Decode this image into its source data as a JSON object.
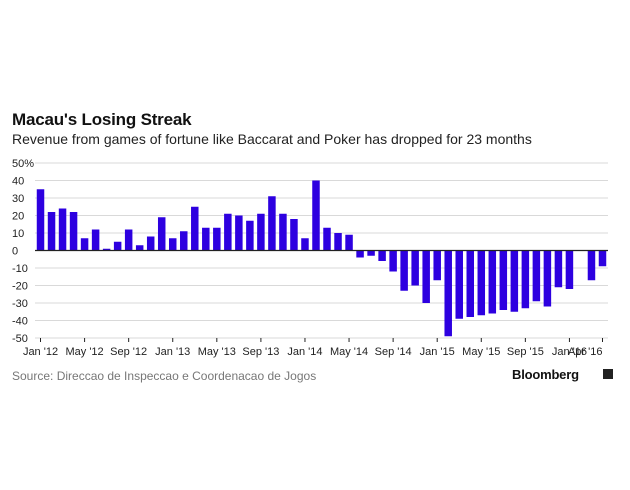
{
  "header": {
    "title": "Macau's Losing Streak",
    "subtitle": "Revenue from games of fortune like Baccarat and Poker has dropped for 23 months"
  },
  "footer": {
    "source": "Source: Direccao de Inspeccao e Coordenacao de Jogos",
    "brand": "Bloomberg"
  },
  "colors": {
    "bar": "#2d00e0",
    "grid": "#d9d9d9",
    "zero_line": "#222222",
    "text": "#222222"
  },
  "chart_data": {
    "type": "bar",
    "title": "Macau's Losing Streak",
    "subtitle": "Revenue from games of fortune like Baccarat and Poker has dropped for 23 months",
    "xlabel": "",
    "ylabel": "",
    "unit": "%",
    "grid": true,
    "ylim": [
      -50,
      50
    ],
    "yticks": [
      50,
      40,
      30,
      20,
      10,
      0,
      -10,
      -20,
      -30,
      -40,
      -50
    ],
    "ytick_labels": [
      "50%",
      "40",
      "30",
      "20",
      "10",
      "0",
      "-10",
      "-20",
      "-30",
      "-40",
      "-50"
    ],
    "xtick_labels": [
      "Jan '12",
      "May '12",
      "Sep '12",
      "Jan '13",
      "May '13",
      "Sep '13",
      "Jan '14",
      "May '14",
      "Sep '14",
      "Jan '15",
      "May '15",
      "Sep '15",
      "Jan '16",
      "Apr '16"
    ],
    "xtick_months": [
      "2012-01",
      "2012-05",
      "2012-09",
      "2013-01",
      "2013-05",
      "2013-09",
      "2014-01",
      "2014-05",
      "2014-09",
      "2015-01",
      "2015-05",
      "2015-09",
      "2016-01",
      "2016-04"
    ],
    "months": [
      "2012-01",
      "2012-02",
      "2012-03",
      "2012-04",
      "2012-05",
      "2012-06",
      "2012-07",
      "2012-08",
      "2012-09",
      "2012-10",
      "2012-11",
      "2012-12",
      "2013-01",
      "2013-02",
      "2013-03",
      "2013-04",
      "2013-05",
      "2013-06",
      "2013-07",
      "2013-08",
      "2013-09",
      "2013-10",
      "2013-11",
      "2013-12",
      "2014-01",
      "2014-02",
      "2014-03",
      "2014-04",
      "2014-05",
      "2014-06",
      "2014-07",
      "2014-08",
      "2014-09",
      "2014-10",
      "2014-11",
      "2014-12",
      "2015-01",
      "2015-02",
      "2015-03",
      "2015-04",
      "2015-05",
      "2015-06",
      "2015-07",
      "2015-08",
      "2015-09",
      "2015-10",
      "2015-11",
      "2015-12",
      "2016-01",
      "2016-02",
      "2016-03",
      "2016-04"
    ],
    "values": [
      35,
      22,
      24,
      22,
      7,
      12,
      1,
      5,
      12,
      3,
      8,
      19,
      7,
      11,
      25,
      13,
      13,
      21,
      20,
      17,
      21,
      31,
      21,
      18,
      7,
      40,
      13,
      10,
      9,
      -4,
      -3,
      -6,
      -12,
      -23,
      -20,
      -30,
      -17,
      -49,
      -39,
      -38,
      -37,
      -36,
      -34,
      -35,
      -33,
      -29,
      -32,
      -21,
      -22,
      null,
      -17,
      -9
    ]
  }
}
